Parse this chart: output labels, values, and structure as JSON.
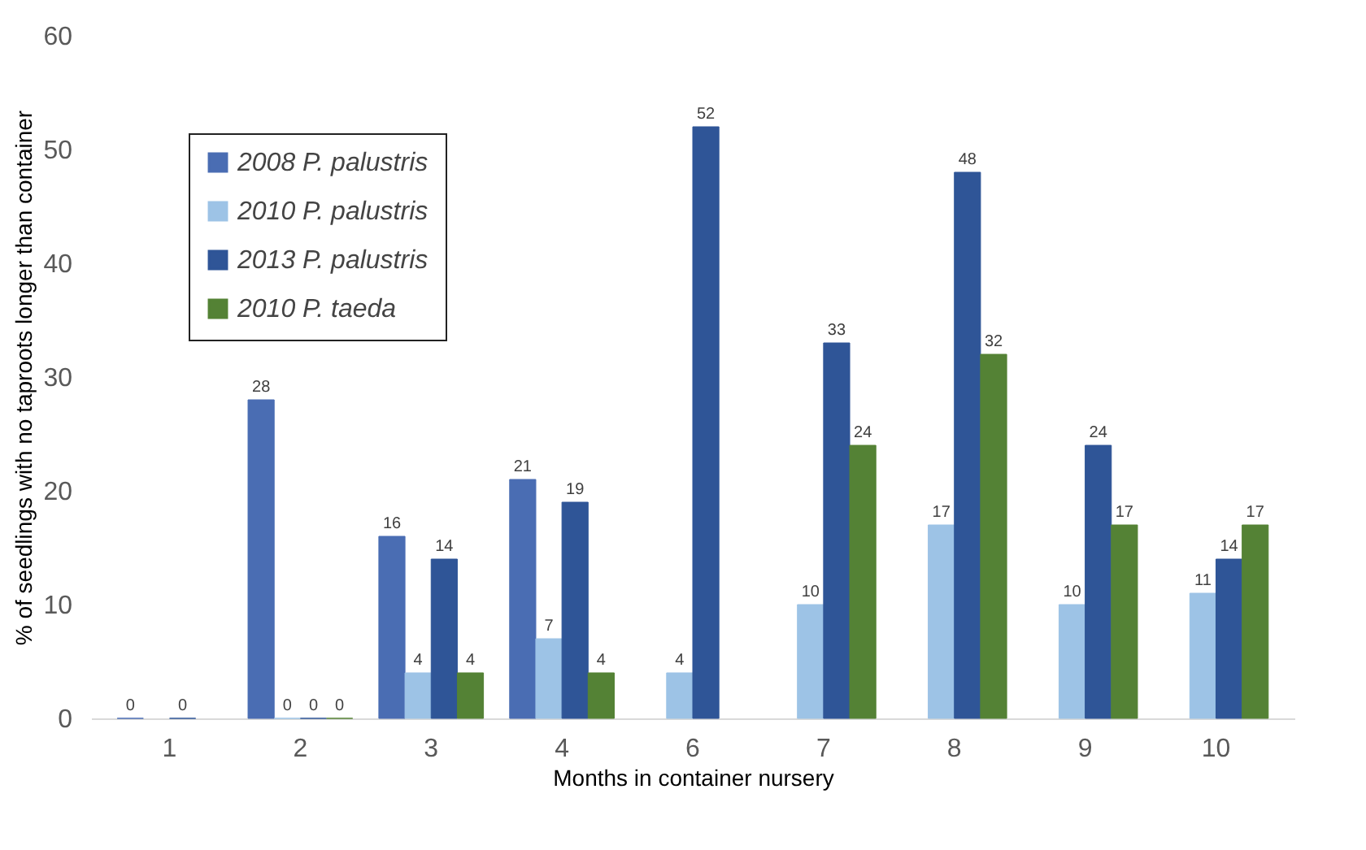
{
  "chart_data": {
    "type": "bar",
    "xlabel": "Months in container nursery",
    "ylabel": "% of seedlings with no taproots longer than container",
    "categories": [
      "1",
      "2",
      "3",
      "4",
      "6",
      "7",
      "8",
      "9",
      "10"
    ],
    "series": [
      {
        "name": "2008 P. palustris",
        "color": "#4a6db3",
        "values": [
          0,
          28,
          16,
          21,
          null,
          null,
          null,
          null,
          null
        ]
      },
      {
        "name": "2010 P. palustris",
        "color": "#9dc3e6",
        "values": [
          null,
          0,
          4,
          7,
          4,
          10,
          17,
          10,
          11
        ]
      },
      {
        "name": "2013 P. palustris",
        "color": "#2f5597",
        "values": [
          0,
          0,
          14,
          19,
          52,
          33,
          48,
          24,
          14
        ]
      },
      {
        "name": "2010 P. taeda",
        "color": "#548235",
        "values": [
          null,
          0,
          4,
          4,
          null,
          24,
          32,
          17,
          17
        ]
      }
    ],
    "ylim": [
      0,
      60
    ],
    "yticks": [
      0,
      10,
      20,
      30,
      40,
      50,
      60
    ],
    "grid": false,
    "legend": "top left",
    "data_labels": true
  }
}
